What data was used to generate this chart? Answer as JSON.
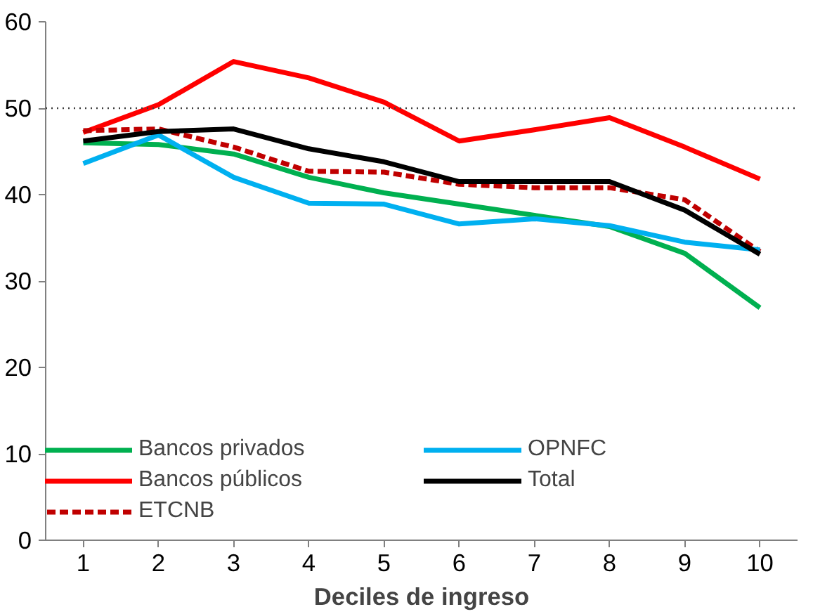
{
  "chart_data": {
    "type": "line",
    "xlabel": "Deciles de ingreso",
    "x": [
      1,
      2,
      3,
      4,
      5,
      6,
      7,
      8,
      9,
      10
    ],
    "xlim": [
      0.5,
      10.5
    ],
    "xticks": [
      1,
      2,
      3,
      4,
      5,
      6,
      7,
      8,
      9,
      10
    ],
    "ylim": [
      0,
      60
    ],
    "yticks": [
      0,
      10,
      20,
      30,
      40,
      50,
      60
    ],
    "grid": false,
    "legend": "bottom",
    "marker": "none",
    "ref_lines": [
      {
        "axis": "y",
        "value": 50,
        "color": "#404040",
        "line_style": "dotted"
      }
    ],
    "series": [
      {
        "name": "Bancos privados",
        "color": "#00b050",
        "line_style": "solid",
        "values": [
          46.0,
          45.8,
          44.7,
          42.0,
          40.2,
          38.9,
          37.6,
          36.3,
          33.2,
          26.9
        ]
      },
      {
        "name": "Bancos públicos",
        "color": "#ff0000",
        "line_style": "solid",
        "values": [
          47.2,
          50.4,
          55.4,
          53.5,
          50.7,
          46.2,
          47.5,
          48.9,
          45.5,
          41.8
        ]
      },
      {
        "name": "ETCNB",
        "color": "#c00000",
        "line_style": "dashed",
        "values": [
          47.4,
          47.6,
          45.5,
          42.7,
          42.6,
          41.2,
          40.8,
          40.8,
          39.4,
          33.4
        ]
      },
      {
        "name": "OPNFC",
        "color": "#00b0f0",
        "line_style": "solid",
        "values": [
          43.6,
          46.9,
          42.0,
          39.0,
          38.9,
          36.6,
          37.2,
          36.4,
          34.5,
          33.6
        ]
      },
      {
        "name": "Total",
        "color": "#000000",
        "line_style": "solid",
        "values": [
          46.2,
          47.3,
          47.6,
          45.3,
          43.8,
          41.5,
          41.5,
          41.5,
          38.2,
          33.1
        ]
      }
    ]
  }
}
